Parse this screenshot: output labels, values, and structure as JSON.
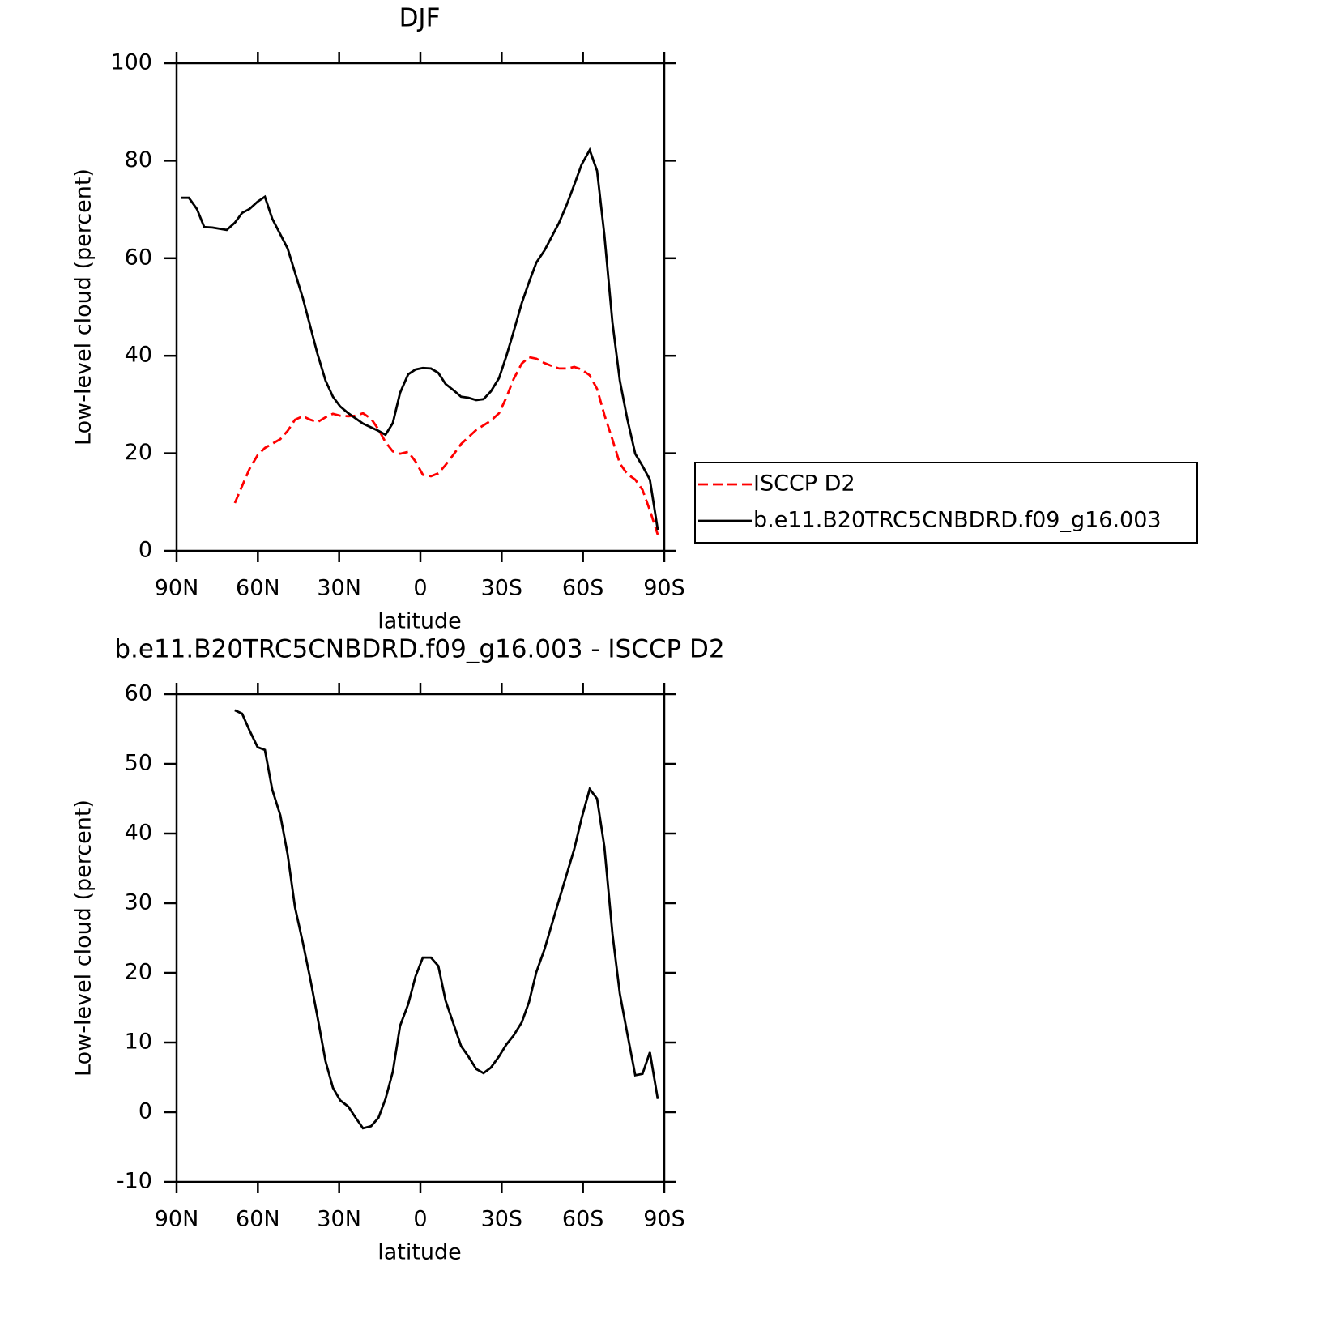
{
  "chart_data": [
    {
      "type": "line",
      "title": "DJF",
      "x_label": "latitude",
      "y_label": "Low-level cloud (percent)",
      "xlim": [
        90,
        -90
      ],
      "xticks": [
        {
          "value": 90,
          "label": "90N"
        },
        {
          "value": 60,
          "label": "60N"
        },
        {
          "value": 30,
          "label": "30N"
        },
        0,
        {
          "value": -30,
          "label": "30S"
        },
        {
          "value": -60,
          "label": "60S"
        },
        {
          "value": -90,
          "label": "90S"
        }
      ],
      "ylim": [
        0,
        100
      ],
      "yticks": [
        0,
        20,
        40,
        60,
        80,
        100
      ],
      "legend": "right",
      "series": [
        {
          "name": "ISCCP D2",
          "color": "#ff0000",
          "dash": "dashed",
          "x": [
            68.5,
            65.8,
            63.1,
            60.1,
            57.4,
            51.7,
            49.0,
            46.3,
            43.4,
            40.7,
            38.0,
            35.0,
            32.3,
            29.6,
            26.6,
            23.9,
            21.2,
            18.2,
            15.5,
            12.9,
            10.2,
            7.5,
            4.5,
            1.8,
            -0.9,
            -3.9,
            -6.6,
            -9.3,
            -12.3,
            -15.0,
            -20.6,
            -26.0,
            -29.0,
            -31.7,
            -34.4,
            -37.4,
            -40.1,
            -42.8,
            -45.8,
            -48.5,
            -51.2,
            -54.1,
            -56.8,
            -59.5,
            -62.5,
            -65.2,
            -67.9,
            -70.9,
            -73.6,
            -76.3,
            -79.3,
            -82.0,
            -84.7,
            -87.6
          ],
          "values": [
            9.8,
            13.3,
            16.8,
            19.6,
            21.1,
            22.9,
            24.6,
            26.9,
            27.6,
            26.9,
            26.4,
            27.4,
            28.1,
            27.7,
            27.6,
            27.7,
            28.2,
            27.1,
            24.9,
            22.3,
            20.4,
            19.9,
            20.3,
            18.3,
            15.6,
            15.3,
            15.9,
            17.6,
            19.8,
            21.9,
            24.8,
            26.7,
            28.2,
            31.4,
            35.2,
            38.4,
            39.7,
            39.4,
            38.5,
            37.9,
            37.4,
            37.4,
            37.7,
            37.2,
            36.0,
            33.2,
            27.9,
            22.8,
            17.9,
            15.8,
            14.6,
            12.5,
            8.3,
            3.3
          ]
        },
        {
          "name": "b.e11.B20TRC5CNBDRD.f09_g16.003",
          "color": "#000000",
          "dash": "solid",
          "x": [
            88.2,
            85.5,
            82.5,
            79.8,
            76.8,
            71.5,
            68.5,
            65.8,
            63.1,
            60.1,
            57.4,
            54.7,
            49.0,
            43.4,
            38.0,
            35.0,
            32.3,
            29.6,
            26.6,
            21.2,
            15.5,
            12.9,
            10.2,
            7.5,
            4.5,
            1.8,
            -0.9,
            -3.9,
            -6.6,
            -9.3,
            -12.3,
            -15.0,
            -17.7,
            -20.6,
            -23.3,
            -26.0,
            -29.0,
            -31.7,
            -34.4,
            -37.4,
            -40.1,
            -42.8,
            -45.8,
            -51.2,
            -54.1,
            -56.8,
            -59.5,
            -62.5,
            -65.2,
            -67.9,
            -70.9,
            -73.6,
            -76.3,
            -79.3,
            -82.0,
            -84.7,
            -87.6
          ],
          "values": [
            72.4,
            72.4,
            70.1,
            66.4,
            66.3,
            65.8,
            67.3,
            69.3,
            70.1,
            71.6,
            72.6,
            68.1,
            62.0,
            51.8,
            40.4,
            34.9,
            31.6,
            29.6,
            28.2,
            26.1,
            24.6,
            23.8,
            26.2,
            32.4,
            36.2,
            37.2,
            37.5,
            37.4,
            36.5,
            34.2,
            32.9,
            31.6,
            31.4,
            30.9,
            31.1,
            32.7,
            35.4,
            39.9,
            44.9,
            50.8,
            55.1,
            59.1,
            61.6,
            67.3,
            71.1,
            75.1,
            79.2,
            82.2,
            77.9,
            64.8,
            46.8,
            34.9,
            27.2,
            19.9,
            17.4,
            14.6,
            4.3
          ]
        }
      ]
    },
    {
      "type": "line",
      "title": "b.e11.B20TRC5CNBDRD.f09_g16.003 - ISCCP D2",
      "x_label": "latitude",
      "y_label": "Low-level cloud (percent)",
      "xlim": [
        90,
        -90
      ],
      "xticks": [
        {
          "value": 90,
          "label": "90N"
        },
        {
          "value": 60,
          "label": "60N"
        },
        {
          "value": 30,
          "label": "30N"
        },
        0,
        {
          "value": -30,
          "label": "30S"
        },
        {
          "value": -60,
          "label": "60S"
        },
        {
          "value": -90,
          "label": "90S"
        }
      ],
      "ylim": [
        -10,
        60
      ],
      "yticks": [
        -10,
        0,
        10,
        20,
        30,
        40,
        50,
        60
      ],
      "series": [
        {
          "color": "#000000",
          "dash": "solid",
          "x": [
            68.5,
            65.8,
            63.1,
            60.1,
            57.4,
            54.7,
            51.7,
            49.0,
            46.3,
            43.4,
            40.7,
            38.0,
            35.0,
            32.3,
            29.6,
            26.6,
            23.9,
            21.2,
            18.2,
            15.5,
            12.9,
            10.2,
            7.5,
            4.5,
            1.8,
            -0.9,
            -3.9,
            -6.6,
            -9.3,
            -15.0,
            -17.7,
            -20.6,
            -23.3,
            -26.0,
            -29.0,
            -31.7,
            -34.4,
            -37.4,
            -40.1,
            -42.8,
            -45.8,
            -51.2,
            -56.8,
            -59.5,
            -62.5,
            -65.2,
            -67.9,
            -70.9,
            -73.6,
            -76.3,
            -79.3,
            -82.0,
            -84.7,
            -87.6
          ],
          "values": [
            57.7,
            57.2,
            54.8,
            52.4,
            52.0,
            46.3,
            42.6,
            37.0,
            29.4,
            24.3,
            19.2,
            13.7,
            7.3,
            3.5,
            1.7,
            0.8,
            -0.8,
            -2.3,
            -2.0,
            -0.8,
            1.9,
            5.8,
            12.4,
            15.5,
            19.5,
            22.2,
            22.2,
            21.0,
            16.0,
            9.5,
            8.0,
            6.2,
            5.6,
            6.4,
            8.0,
            9.7,
            11.0,
            12.9,
            15.8,
            20.1,
            23.4,
            30.5,
            37.8,
            42.2,
            46.4,
            45.0,
            38.1,
            25.6,
            17.0,
            11.4,
            5.3,
            5.5,
            8.6,
            1.9
          ]
        }
      ]
    }
  ]
}
